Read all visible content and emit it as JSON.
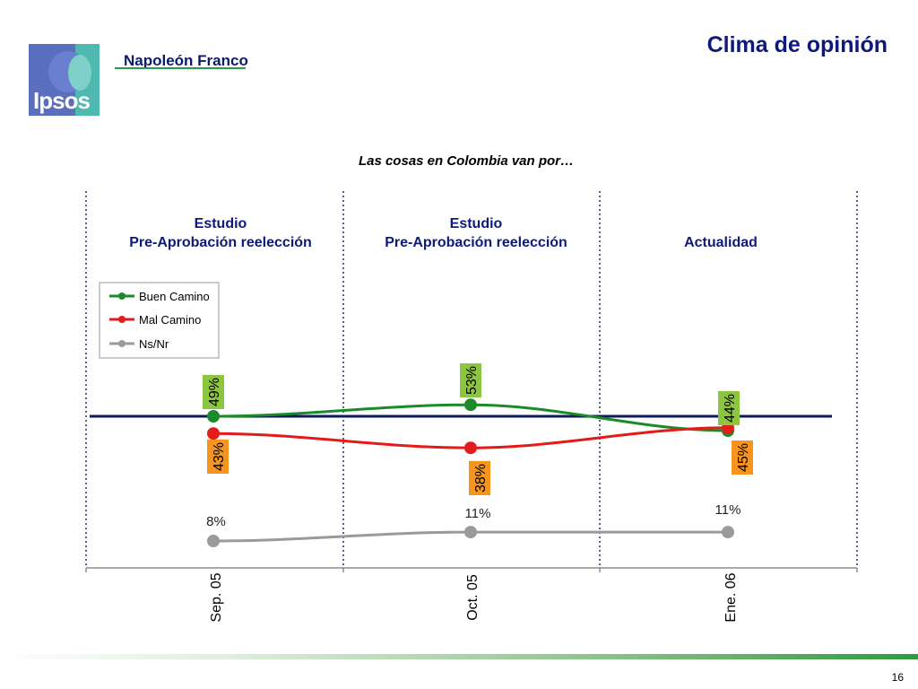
{
  "header": {
    "logo_text": "Ipsos",
    "brand": "Napoleón Franco",
    "title": "Clima de opinión"
  },
  "page_number": "16",
  "colors": {
    "buen": "#1b8a2a",
    "mal": "#e31b1b",
    "nsnr": "#9a9a9a",
    "label_green": "#8cc640",
    "label_orange": "#f7941d",
    "ref_line": "#0d1a5e"
  },
  "chart_data": {
    "type": "line",
    "title": "Las cosas en Colombia van por…",
    "sections": [
      {
        "line1": "Estudio",
        "line2": "Pre-Aprobación reelección"
      },
      {
        "line1": "Estudio",
        "line2": "Pre-Aprobación reelección"
      },
      {
        "line1": "",
        "line2": "Actualidad"
      }
    ],
    "categories": [
      "Sep. 05",
      "Oct. 05",
      "Ene. 06"
    ],
    "series": [
      {
        "name": "Buen Camino",
        "values": [
          49,
          53,
          44
        ],
        "labels": [
          "49%",
          "53%",
          "44%"
        ]
      },
      {
        "name": "Mal Camino",
        "values": [
          43,
          38,
          45
        ],
        "labels": [
          "43%",
          "38%",
          "45%"
        ]
      },
      {
        "name": "Ns/Nr",
        "values": [
          8,
          11,
          11
        ],
        "labels": [
          "8%",
          "11%",
          "11%"
        ]
      }
    ],
    "legend": "top-left",
    "grid": false
  }
}
